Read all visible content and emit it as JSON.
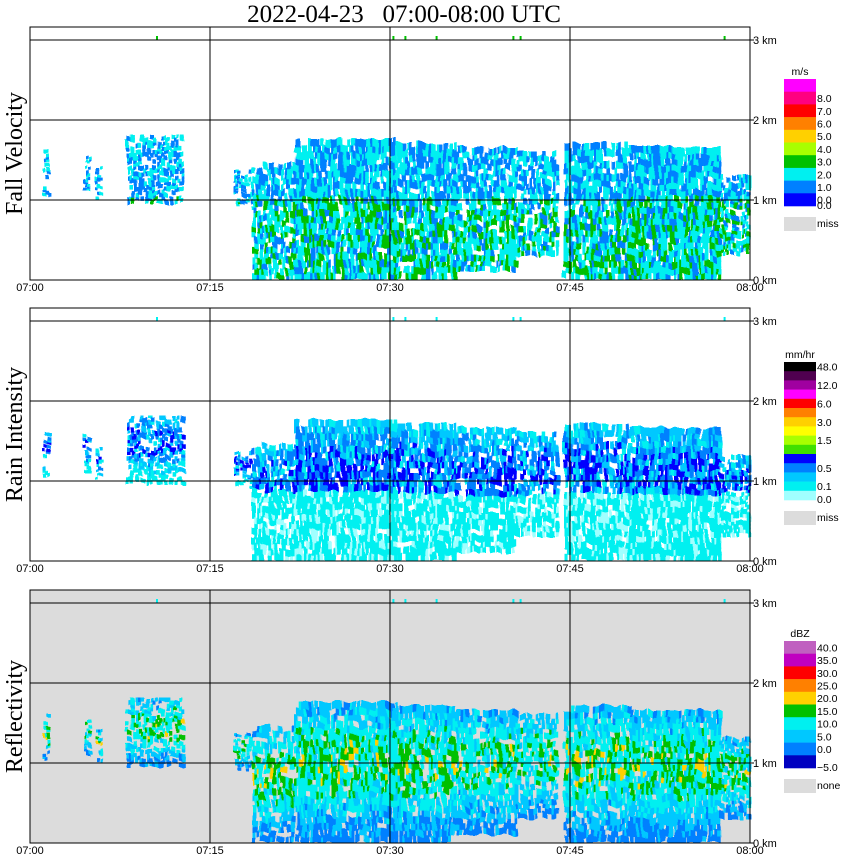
{
  "title": "2022-04-23   07:00-08:00 UTC",
  "height_ticks": [
    "0 km",
    "1 km",
    "2 km",
    "3 km"
  ],
  "time_ticks": [
    "07:00",
    "07:15",
    "07:30",
    "07:45",
    "08:00"
  ],
  "panels": [
    {
      "ylabel": "Fall Velocity",
      "unit": "m/s",
      "background": "#ffffff",
      "colorbar": [
        {
          "label": "",
          "color": "#ff00ff"
        },
        {
          "label": "8.0",
          "color": "#ff0080"
        },
        {
          "label": "7.0",
          "color": "#ff0000"
        },
        {
          "label": "6.0",
          "color": "#ff8000"
        },
        {
          "label": "5.0",
          "color": "#ffd000"
        },
        {
          "label": "4.0",
          "color": "#a8ff00"
        },
        {
          "label": "3.0",
          "color": "#00c000"
        },
        {
          "label": "2.0",
          "color": "#00f0f0"
        },
        {
          "label": "1.0",
          "color": "#0080ff"
        },
        {
          "label": "0.0",
          "color": "#0000ff"
        }
      ],
      "bottom_label": "0.0",
      "miss_label": "miss",
      "miss_color": "#dcdcdc"
    },
    {
      "ylabel": "Rain Intensity",
      "unit": "mm/hr",
      "background": "#ffffff",
      "colorbar": [
        {
          "label": "48.0",
          "color": "#000000"
        },
        {
          "label": "",
          "color": "#500050"
        },
        {
          "label": "12.0",
          "color": "#a000a0"
        },
        {
          "label": "",
          "color": "#ff00ff"
        },
        {
          "label": "6.0",
          "color": "#ff0000"
        },
        {
          "label": "",
          "color": "#ff8000"
        },
        {
          "label": "3.0",
          "color": "#ffd000"
        },
        {
          "label": "",
          "color": "#ffff00"
        },
        {
          "label": "1.5",
          "color": "#a8ff00"
        },
        {
          "label": "",
          "color": "#40e000"
        },
        {
          "label": "",
          "color": "#0000ff"
        },
        {
          "label": "0.5",
          "color": "#0080ff"
        },
        {
          "label": "",
          "color": "#00c8ff"
        },
        {
          "label": "0.1",
          "color": "#00f0f0"
        },
        {
          "label": "",
          "color": "#a0ffff"
        }
      ],
      "bottom_label": "0.0",
      "miss_label": "miss",
      "miss_color": "#dcdcdc"
    },
    {
      "ylabel": "Reflectivity",
      "unit": "dBZ",
      "background": "#dcdcdc",
      "colorbar": [
        {
          "label": "40.0",
          "color": "#c060c0"
        },
        {
          "label": "35.0",
          "color": "#c000c0"
        },
        {
          "label": "30.0",
          "color": "#ff0000"
        },
        {
          "label": "25.0",
          "color": "#ff8000"
        },
        {
          "label": "20.0",
          "color": "#ffd000"
        },
        {
          "label": "15.0",
          "color": "#00c000"
        },
        {
          "label": "10.0",
          "color": "#00f0f0"
        },
        {
          "label": "5.0",
          "color": "#00c8ff"
        },
        {
          "label": "0.0",
          "color": "#0080ff"
        },
        {
          "label": "",
          "color": "#0000c0"
        }
      ],
      "bottom_label": "−5.0",
      "miss_label": "none",
      "miss_color": "#dcdcdc"
    }
  ],
  "chart_data": {
    "type": "heatmap",
    "title": "2022-04-23   07:00-08:00 UTC",
    "x_range": [
      "07:00",
      "08:00"
    ],
    "y_range_km": [
      0,
      3.2
    ],
    "grid": true,
    "legend": "right",
    "cells": [
      {
        "t0": 7.5,
        "t1": 12.5,
        "h0": 0.9,
        "h1": 1.75,
        "fv": 1.5,
        "ri": 0.1,
        "dbz": 5
      },
      {
        "t0": 18.5,
        "t1": 30.5,
        "h0": 0.05,
        "h1": 1.7,
        "fv": 2.5,
        "ri": 0.3,
        "dbz": 10
      },
      {
        "t0": 24.5,
        "t1": 26.5,
        "h0": 1.0,
        "h1": 1.5,
        "fv": 2.0,
        "ri": 0.7,
        "dbz": 15
      },
      {
        "t0": 30.0,
        "t1": 47.0,
        "h0": 0.0,
        "h1": 1.6,
        "fv": 2.0,
        "ri": 0.2,
        "dbz": 8
      },
      {
        "t0": 47.0,
        "t1": 60.0,
        "h0": 0.0,
        "h1": 1.6,
        "fv": 2.5,
        "ri": 0.4,
        "dbz": 12
      },
      {
        "t0": 52.0,
        "t1": 54.0,
        "h0": 0.8,
        "h1": 1.5,
        "fv": 3.0,
        "ri": 0.8,
        "dbz": 17
      }
    ]
  }
}
